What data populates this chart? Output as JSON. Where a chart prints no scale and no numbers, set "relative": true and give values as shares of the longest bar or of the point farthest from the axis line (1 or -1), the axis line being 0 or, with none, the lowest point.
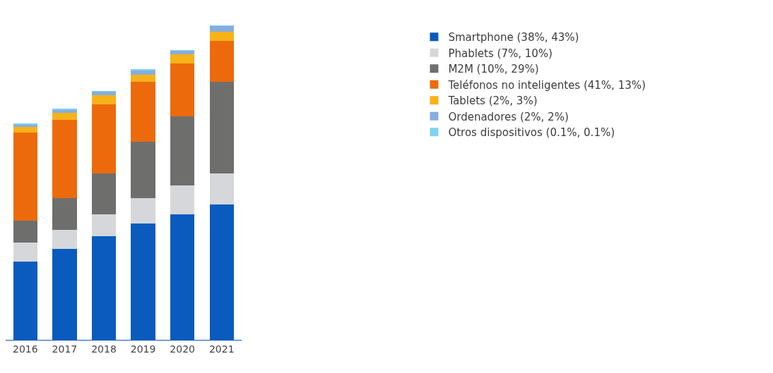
{
  "chart_data": {
    "type": "bar",
    "stacked": true,
    "relative": true,
    "legend": "top right",
    "tick_labels": "x",
    "categories": [
      "2016",
      "2017",
      "2018",
      "2019",
      "2020",
      "2021"
    ],
    "series": [
      {
        "name": "Smartphone (38%, 43%)",
        "color": "#0a5bbd",
        "values": [
          0.25,
          0.29,
          0.33,
          0.37,
          0.4,
          0.43
        ]
      },
      {
        "name": "Phablets (7%, 10%)",
        "color": "#d5d7db",
        "values": [
          0.06,
          0.06,
          0.07,
          0.08,
          0.09,
          0.1
        ]
      },
      {
        "name": "M2M (10%, 29%)",
        "color": "#6e6f6d",
        "values": [
          0.07,
          0.1,
          0.13,
          0.18,
          0.22,
          0.29
        ]
      },
      {
        "name": "Teléfonos no inteligentes (41%, 13%)",
        "color": "#ec6a0c",
        "values": [
          0.28,
          0.25,
          0.22,
          0.19,
          0.17,
          0.13
        ]
      },
      {
        "name": "Tablets (2%, 3%)",
        "color": "#f7b21a",
        "values": [
          0.018,
          0.022,
          0.029,
          0.022,
          0.029,
          0.03
        ]
      },
      {
        "name": "Ordenadores (2%, 2%)",
        "color": "#86aede",
        "values": [
          0.008,
          0.011,
          0.011,
          0.016,
          0.011,
          0.019
        ]
      },
      {
        "name": "Otros dispositivos (0.1%, 0.1%)",
        "color": "#7fd3f0",
        "values": [
          0.001,
          0.001,
          0.001,
          0.001,
          0.001,
          0.001
        ]
      }
    ]
  }
}
